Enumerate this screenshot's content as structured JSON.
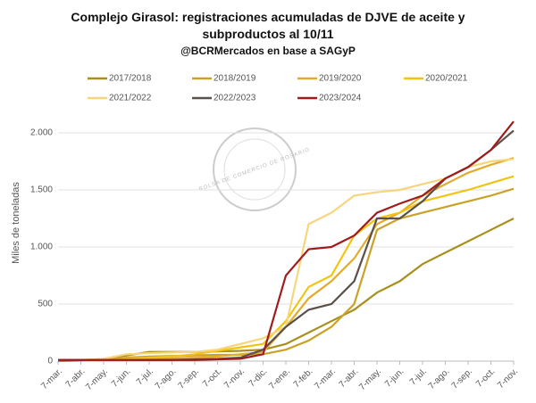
{
  "chart_data": {
    "type": "line",
    "title": "Complejo Girasol: registraciones acumuladas de DJVE de aceite y subproductos al 10/11",
    "subtitle": "@BCRMercados en base a SAGyP",
    "watermark": "BOLSA DE COMERCIO DE ROSARIO",
    "y_label": "Miles de toneladas",
    "categories": [
      "7-mar.",
      "7-abr.",
      "7-may.",
      "7-jun.",
      "7-jul.",
      "7-ago.",
      "7-sep.",
      "7-oct.",
      "7-nov.",
      "7-dic.",
      "7-ene.",
      "7-feb.",
      "7-mar.",
      "7-abr.",
      "7-may.",
      "7-jun.",
      "7-jul.",
      "7-ago.",
      "7-sep.",
      "7-oct.",
      "7-nov."
    ],
    "ylim": [
      0,
      2200
    ],
    "yticks": [
      0,
      500,
      {
        "value": 1000,
        "label": "1.000"
      },
      {
        "value": 1500,
        "label": "1.500"
      },
      {
        "value": 2000,
        "label": "2.000"
      }
    ],
    "grid": true,
    "series": [
      {
        "name": "2017/2018",
        "color": "#a8901e",
        "values": [
          0,
          5,
          20,
          50,
          80,
          80,
          80,
          85,
          90,
          100,
          150,
          250,
          350,
          450,
          600,
          700,
          850,
          950,
          1050,
          1150,
          1250
        ]
      },
      {
        "name": "2018/2019",
        "color": "#c9a227",
        "values": [
          10,
          10,
          15,
          30,
          40,
          45,
          50,
          55,
          55,
          60,
          100,
          180,
          300,
          500,
          1150,
          1250,
          1300,
          1350,
          1400,
          1450,
          1510
        ]
      },
      {
        "name": "2019/2020",
        "color": "#e3ab2e",
        "values": [
          10,
          10,
          10,
          15,
          20,
          25,
          30,
          40,
          60,
          80,
          300,
          550,
          700,
          900,
          1200,
          1300,
          1450,
          1550,
          1650,
          1720,
          1780
        ]
      },
      {
        "name": "2020/2021",
        "color": "#f2c410",
        "values": [
          10,
          10,
          10,
          20,
          30,
          40,
          60,
          90,
          120,
          150,
          350,
          650,
          750,
          1100,
          1250,
          1300,
          1400,
          1450,
          1500,
          1560,
          1620
        ]
      },
      {
        "name": "2021/2022",
        "color": "#f6d57c",
        "values": [
          10,
          10,
          20,
          60,
          70,
          75,
          80,
          100,
          150,
          200,
          300,
          1200,
          1300,
          1450,
          1480,
          1500,
          1550,
          1600,
          1700,
          1750,
          1770
        ]
      },
      {
        "name": "2022/2023",
        "color": "#5a524a",
        "values": [
          10,
          10,
          10,
          10,
          10,
          10,
          15,
          20,
          30,
          100,
          300,
          450,
          500,
          700,
          1250,
          1250,
          1400,
          1600,
          1700,
          1850,
          2020
        ]
      },
      {
        "name": "2023/2024",
        "color": "#a01c1c",
        "values": [
          10,
          10,
          10,
          10,
          10,
          10,
          10,
          15,
          20,
          60,
          750,
          980,
          1000,
          1100,
          1300,
          1380,
          1450,
          1600,
          1700,
          1850,
          2100
        ]
      }
    ]
  }
}
